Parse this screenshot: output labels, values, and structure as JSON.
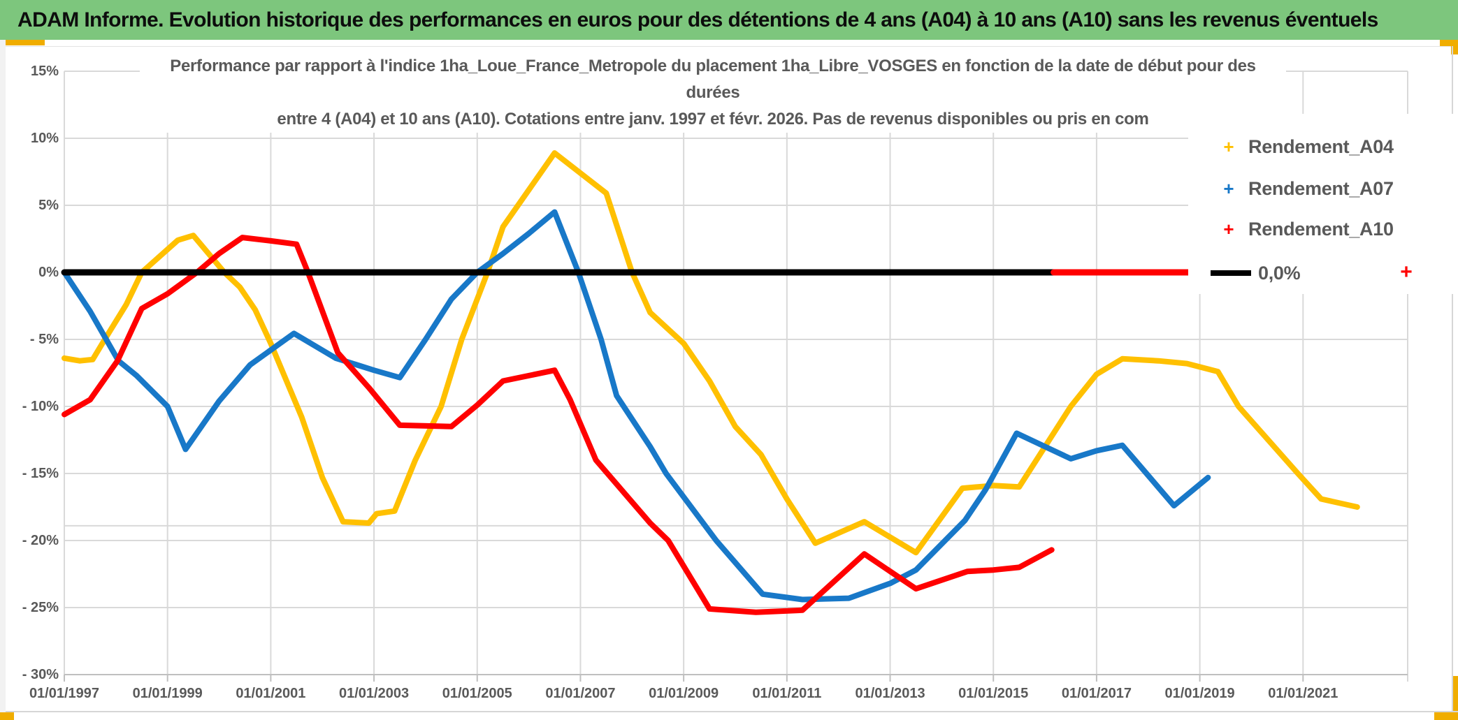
{
  "header": {
    "title": "ADAM Informe. Evolution historique des performances en euros pour des détentions de 4 ans (A04) à 10 ans (A10) sans les revenus éventuels",
    "bg_color": "#7dc67d"
  },
  "chart": {
    "title_lines": [
      "Performance par rapport à l'indice 1ha_Loue_France_Metropole  du placement 1ha_Libre_VOSGES en fonction de la date de début pour des",
      "durées",
      "entre 4 (A04) et 10 ans (A10). Cotations entre janv. 1997 et févr. 2026. Pas de revenus disponibles ou pris en com"
    ],
    "text_color": "#595959",
    "gridline_color": "#d9d9d9",
    "axis_line_color": "#bfbfbf"
  },
  "legend": {
    "items": [
      {
        "label": "Rendement_A04",
        "marker": "+",
        "color": "#FFC000"
      },
      {
        "label": "Rendement_A07",
        "marker": "+",
        "color": "#1878C8"
      },
      {
        "label": "Rendement_A10",
        "marker": "+",
        "color": "#FF0000"
      },
      {
        "label": "0,0%",
        "marker": "line",
        "color": "#000000"
      }
    ]
  },
  "chart_data": {
    "type": "line",
    "title": "Performance par rapport à l'indice 1ha_Loue_France_Metropole du placement 1ha_Libre_VOSGES en fonction de la date de début pour des durées entre 4 (A04) et 10 ans (A10). Cotations entre janv. 1997 et févr. 2026. Pas de revenus disponibles ou pris en com",
    "x_axis": {
      "unit": "date_decimal_year",
      "range": [
        1997.0,
        2023.05
      ],
      "tick_years": [
        1997,
        1999,
        2001,
        2003,
        2005,
        2007,
        2009,
        2011,
        2013,
        2015,
        2017,
        2019,
        2021
      ],
      "tick_labels": [
        "01/01/1997",
        "01/01/1999",
        "01/01/2001",
        "01/01/2003",
        "01/01/2005",
        "01/01/2007",
        "01/01/2009",
        "01/01/2011",
        "01/01/2013",
        "01/01/2015",
        "01/01/2017",
        "01/01/2019",
        "01/01/2021"
      ]
    },
    "y_axis": {
      "unit": "percent",
      "range": [
        -30,
        15
      ],
      "ticks": [
        15,
        10,
        5,
        0,
        -5,
        -10,
        -15,
        -20,
        -25,
        -30
      ],
      "tick_labels": [
        "15%",
        "10%",
        "5%",
        "0%",
        "- 5%",
        "- 10%",
        "- 15%",
        "- 20%",
        "- 25%",
        "- 30%"
      ]
    },
    "grid": true,
    "extra_gridline_pct": -18.9,
    "legend_position": "top-right",
    "series": [
      {
        "name": "Rendement_A04",
        "color": "#FFC000",
        "marker": "+",
        "points": [
          [
            1997.0,
            -6.4
          ],
          [
            1997.3,
            -6.6
          ],
          [
            1997.55,
            -6.5
          ],
          [
            1997.8,
            -4.9
          ],
          [
            1998.2,
            -2.4
          ],
          [
            1998.5,
            0.0
          ],
          [
            1999.2,
            2.4
          ],
          [
            1999.5,
            2.75
          ],
          [
            2000.1,
            0.0
          ],
          [
            2000.4,
            -1.1
          ],
          [
            2000.7,
            -2.8
          ],
          [
            2001.0,
            -5.3
          ],
          [
            2001.6,
            -10.8
          ],
          [
            2002.0,
            -15.3
          ],
          [
            2002.4,
            -18.6
          ],
          [
            2002.9,
            -18.7
          ],
          [
            2003.05,
            -18.0
          ],
          [
            2003.4,
            -17.8
          ],
          [
            2003.8,
            -14.0
          ],
          [
            2004.3,
            -10.0
          ],
          [
            2004.7,
            -5.0
          ],
          [
            2005.2,
            0.0
          ],
          [
            2005.5,
            3.4
          ],
          [
            2006.5,
            8.9
          ],
          [
            2007.5,
            5.9
          ],
          [
            2008.0,
            0.0
          ],
          [
            2008.35,
            -3.0
          ],
          [
            2009.0,
            -5.3
          ],
          [
            2009.5,
            -8.1
          ],
          [
            2010.0,
            -11.5
          ],
          [
            2010.5,
            -13.6
          ],
          [
            2011.0,
            -16.9
          ],
          [
            2011.55,
            -20.2
          ],
          [
            2012.5,
            -18.6
          ],
          [
            2013.5,
            -20.9
          ],
          [
            2014.4,
            -16.1
          ],
          [
            2015.0,
            -15.9
          ],
          [
            2015.5,
            -16.0
          ],
          [
            2016.5,
            -10.0
          ],
          [
            2017.0,
            -7.6
          ],
          [
            2017.5,
            -6.45
          ],
          [
            2018.2,
            -6.6
          ],
          [
            2018.75,
            -6.8
          ],
          [
            2019.35,
            -7.4
          ],
          [
            2019.75,
            -10.0
          ],
          [
            2020.9,
            -15.0
          ],
          [
            2021.35,
            -16.9
          ],
          [
            2022.05,
            -17.5
          ]
        ]
      },
      {
        "name": "Rendement_A07",
        "color": "#1878C8",
        "marker": "+",
        "points": [
          [
            1997.0,
            0.0
          ],
          [
            1997.5,
            -2.9
          ],
          [
            1998.05,
            -6.6
          ],
          [
            1998.4,
            -7.7
          ],
          [
            1999.0,
            -10.0
          ],
          [
            1999.35,
            -13.2
          ],
          [
            2000.0,
            -9.6
          ],
          [
            2000.6,
            -6.9
          ],
          [
            2001.45,
            -4.55
          ],
          [
            2002.26,
            -6.4
          ],
          [
            2003.0,
            -7.3
          ],
          [
            2003.5,
            -7.85
          ],
          [
            2004.0,
            -5.0
          ],
          [
            2004.5,
            -2.0
          ],
          [
            2005.0,
            0.0
          ],
          [
            2005.5,
            1.4
          ],
          [
            2006.0,
            2.9
          ],
          [
            2006.5,
            4.5
          ],
          [
            2006.96,
            0.0
          ],
          [
            2007.4,
            -5.0
          ],
          [
            2007.7,
            -9.2
          ],
          [
            2008.35,
            -13.0
          ],
          [
            2008.66,
            -15.0
          ],
          [
            2009.63,
            -20.0
          ],
          [
            2010.53,
            -24.0
          ],
          [
            2011.3,
            -24.4
          ],
          [
            2012.2,
            -24.3
          ],
          [
            2013.0,
            -23.2
          ],
          [
            2013.5,
            -22.2
          ],
          [
            2014.45,
            -18.5
          ],
          [
            2014.85,
            -16.2
          ],
          [
            2015.45,
            -12.0
          ],
          [
            2016.5,
            -13.9
          ],
          [
            2017.0,
            -13.3
          ],
          [
            2017.5,
            -12.9
          ],
          [
            2018.5,
            -17.4
          ],
          [
            2019.16,
            -15.3
          ]
        ]
      },
      {
        "name": "Rendement_A10",
        "color": "#FF0000",
        "marker": "+",
        "points": [
          [
            1997.0,
            -10.6
          ],
          [
            1997.5,
            -9.5
          ],
          [
            1998.03,
            -6.6
          ],
          [
            1998.5,
            -2.7
          ],
          [
            1999.0,
            -1.6
          ],
          [
            1999.57,
            0.0
          ],
          [
            2000.0,
            1.4
          ],
          [
            2000.45,
            2.6
          ],
          [
            2001.0,
            2.35
          ],
          [
            2001.5,
            2.1
          ],
          [
            2001.72,
            0.0
          ],
          [
            2002.3,
            -6.0
          ],
          [
            2002.9,
            -8.6
          ],
          [
            2003.5,
            -11.4
          ],
          [
            2004.5,
            -11.5
          ],
          [
            2005.0,
            -9.9
          ],
          [
            2005.5,
            -8.1
          ],
          [
            2006.5,
            -7.3
          ],
          [
            2006.8,
            -9.5
          ],
          [
            2007.3,
            -14.0
          ],
          [
            2008.35,
            -18.7
          ],
          [
            2008.7,
            -20.0
          ],
          [
            2009.5,
            -25.1
          ],
          [
            2010.4,
            -25.35
          ],
          [
            2011.3,
            -25.2
          ],
          [
            2012.5,
            -21.0
          ],
          [
            2013.5,
            -23.6
          ],
          [
            2014.5,
            -22.3
          ],
          [
            2015.0,
            -22.2
          ],
          [
            2015.5,
            -22.0
          ],
          [
            2016.13,
            -20.7
          ]
        ]
      },
      {
        "name": "0,0%",
        "color": "#000000",
        "marker": "none",
        "points": [
          [
            1997.0,
            0.0
          ],
          [
            2016.2,
            0.0
          ]
        ]
      }
    ],
    "red_zero_overlay": {
      "note": "Rendement_A10 flat 0% segment drawn over the black zero line",
      "segment": [
        [
          2016.17,
          0.0
        ],
        [
          2018.8,
          0.0
        ]
      ],
      "isolated_marker": [
        2023.0,
        0.0
      ]
    }
  }
}
